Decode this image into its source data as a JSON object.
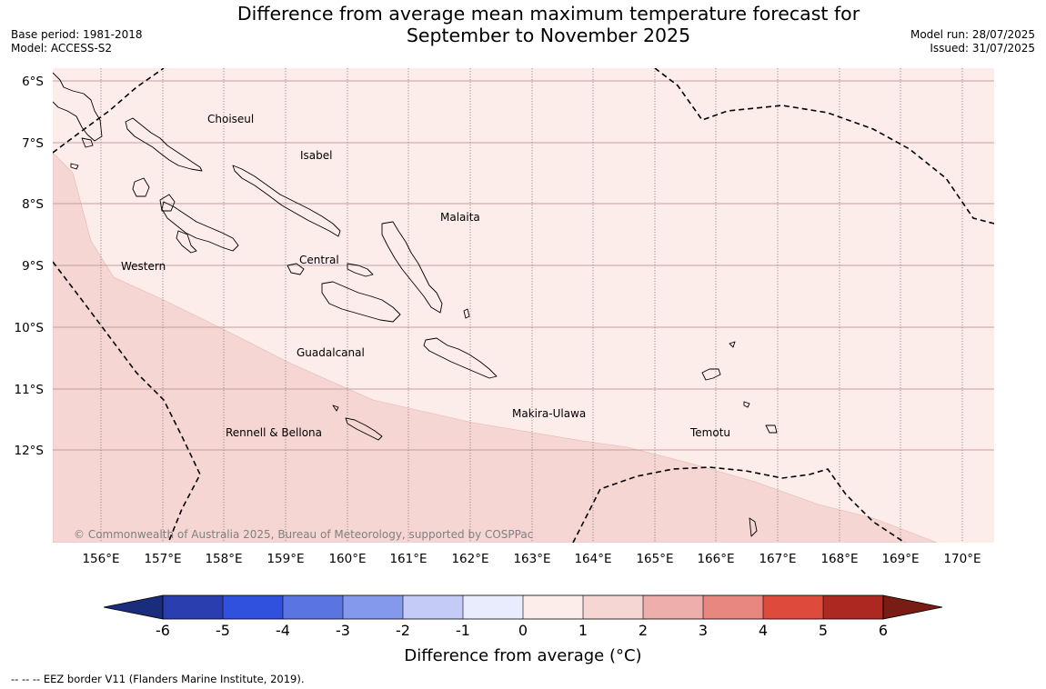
{
  "header": {
    "title_line1": "Difference from average mean maximum temperature forecast for",
    "title_line2": "September to November 2025",
    "base_period": "Base period: 1981-2018",
    "model": "Model: ACCESS-S2",
    "model_run": "Model run: 28/07/2025",
    "issued": "Issued: 31/07/2025"
  },
  "map": {
    "lat_labels": [
      "6°S",
      "7°S",
      "8°S",
      "9°S",
      "10°S",
      "11°S",
      "12°S"
    ],
    "lon_labels": [
      "156°E",
      "157°E",
      "158°E",
      "159°E",
      "160°E",
      "161°E",
      "162°E",
      "163°E",
      "164°E",
      "165°E",
      "166°E",
      "167°E",
      "168°E",
      "169°E",
      "170°E"
    ],
    "island_labels": [
      "Choiseul",
      "Isabel",
      "Malaita",
      "Western",
      "Central",
      "Guadalcanal",
      "Makira-Ulawa",
      "Rennell & Bellona",
      "Temotu"
    ],
    "copyright": "© Commonwealth of Australia 2025, Bureau of Meteorology, supported by COSPPac",
    "colors": {
      "anomaly_0_1": "#fcecea",
      "anomaly_1_2": "#f5d6d3",
      "coast": "#000000",
      "eez": "#000000"
    }
  },
  "colorbar": {
    "title": "Difference from average (°C)",
    "ticks": [
      "-6",
      "-5",
      "-4",
      "-3",
      "-2",
      "-1",
      "0",
      "1",
      "2",
      "3",
      "4",
      "5",
      "6"
    ],
    "colors": [
      "#1a2c7c",
      "#2a3eb0",
      "#3050de",
      "#5a74e2",
      "#8599ec",
      "#c3cbf6",
      "#e8ecfc",
      "#fcecea",
      "#f5d6d3",
      "#eeaeab",
      "#e8877f",
      "#de4a3c",
      "#ad2820",
      "#7a1c16"
    ]
  },
  "footnote": "--  --  -- EEZ border V11 (Flanders Marine Institute, 2019)."
}
